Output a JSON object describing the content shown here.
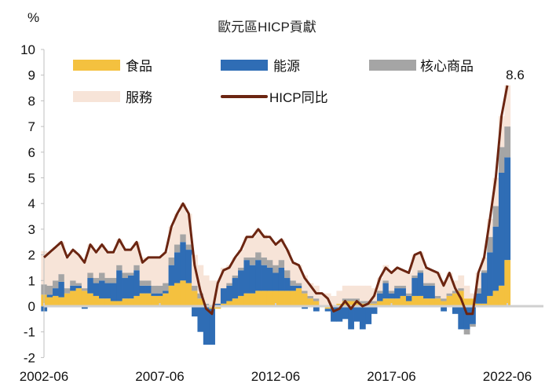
{
  "chart_data": {
    "type": "bar",
    "title": "歐元區HICP貢獻",
    "ylabel": "%",
    "xlabel": "",
    "ylim": [
      -2,
      10
    ],
    "yticks": [
      "10",
      "9",
      "8",
      "7",
      "6",
      "5",
      "4",
      "3",
      "2",
      "1",
      "0",
      "-1",
      "-2"
    ],
    "xticks": [
      "2002-06",
      "2007-06",
      "2012-06",
      "2017-06",
      "2022-06"
    ],
    "annotation": "8.6",
    "legend_position": "top",
    "legend": [
      "食品",
      "能源",
      "核心商品",
      "服務",
      "HICP同比"
    ],
    "colors": {
      "food": "#f4c13f",
      "energy": "#2f6db5",
      "core": "#a5a5a5",
      "services": "#f7e4d8",
      "line": "#6b2511"
    },
    "x": [
      "2002-06",
      "2002-09",
      "2002-12",
      "2003-03",
      "2003-06",
      "2003-09",
      "2003-12",
      "2004-03",
      "2004-06",
      "2004-09",
      "2004-12",
      "2005-03",
      "2005-06",
      "2005-09",
      "2005-12",
      "2006-03",
      "2006-06",
      "2006-09",
      "2006-12",
      "2007-03",
      "2007-06",
      "2007-09",
      "2007-12",
      "2008-03",
      "2008-06",
      "2008-09",
      "2008-12",
      "2009-03",
      "2009-06",
      "2009-09",
      "2009-12",
      "2010-03",
      "2010-06",
      "2010-09",
      "2010-12",
      "2011-03",
      "2011-06",
      "2011-09",
      "2011-12",
      "2012-03",
      "2012-06",
      "2012-09",
      "2012-12",
      "2013-03",
      "2013-06",
      "2013-09",
      "2013-12",
      "2014-03",
      "2014-06",
      "2014-09",
      "2014-12",
      "2015-03",
      "2015-06",
      "2015-09",
      "2015-12",
      "2016-03",
      "2016-06",
      "2016-09",
      "2016-12",
      "2017-03",
      "2017-06",
      "2017-09",
      "2017-12",
      "2018-03",
      "2018-06",
      "2018-09",
      "2018-12",
      "2019-03",
      "2019-06",
      "2019-09",
      "2019-12",
      "2020-03",
      "2020-06",
      "2020-09",
      "2020-12",
      "2021-03",
      "2021-06",
      "2021-09",
      "2021-12",
      "2022-03",
      "2022-06"
    ],
    "series": [
      {
        "name": "食品",
        "key": "food",
        "values": [
          0.45,
          0.35,
          0.4,
          0.35,
          0.5,
          0.6,
          0.7,
          0.6,
          0.5,
          0.4,
          0.3,
          0.3,
          0.2,
          0.2,
          0.3,
          0.3,
          0.4,
          0.5,
          0.5,
          0.4,
          0.4,
          0.5,
          0.8,
          0.9,
          1.0,
          0.9,
          0.6,
          0.3,
          0.0,
          -0.1,
          -0.1,
          0.1,
          0.2,
          0.3,
          0.4,
          0.5,
          0.5,
          0.6,
          0.6,
          0.6,
          0.6,
          0.6,
          0.6,
          0.6,
          0.7,
          0.5,
          0.3,
          0.2,
          0.0,
          -0.1,
          0.0,
          0.1,
          0.2,
          0.2,
          0.2,
          0.1,
          0.1,
          0.1,
          0.2,
          0.3,
          0.3,
          0.3,
          0.4,
          0.2,
          0.4,
          0.4,
          0.3,
          0.3,
          0.3,
          0.2,
          0.4,
          0.5,
          0.6,
          0.3,
          0.3,
          0.1,
          0.1,
          0.4,
          0.6,
          0.8,
          1.8
        ]
      },
      {
        "name": "能源",
        "key": "energy",
        "values": [
          -0.2,
          0.1,
          0.3,
          0.6,
          0.0,
          0.2,
          0.1,
          -0.1,
          0.6,
          0.5,
          0.7,
          0.6,
          0.7,
          1.2,
          0.8,
          0.9,
          1.0,
          0.3,
          0.3,
          0.1,
          0.1,
          0.1,
          0.8,
          1.2,
          1.5,
          1.3,
          -0.4,
          -1.0,
          -1.5,
          -1.4,
          0.1,
          0.6,
          0.6,
          0.8,
          1.0,
          1.3,
          1.1,
          1.2,
          1.0,
          0.9,
          0.7,
          0.9,
          0.5,
          0.2,
          0.1,
          -0.1,
          0.0,
          -0.2,
          0.0,
          -0.1,
          -0.6,
          -0.6,
          -0.5,
          -0.9,
          -0.6,
          -0.9,
          -0.7,
          -0.3,
          0.3,
          0.6,
          0.2,
          0.4,
          0.3,
          0.2,
          0.7,
          0.9,
          0.5,
          0.5,
          0.0,
          -0.2,
          0.0,
          -0.3,
          -0.9,
          -0.9,
          -0.7,
          0.4,
          1.2,
          1.7,
          2.5,
          4.4,
          4.0
        ]
      },
      {
        "name": "核心商品",
        "key": "core",
        "values": [
          0.4,
          0.35,
          0.3,
          0.3,
          0.2,
          0.2,
          0.1,
          0.1,
          0.2,
          0.2,
          0.3,
          0.2,
          0.2,
          0.2,
          0.2,
          0.1,
          0.2,
          0.2,
          0.2,
          0.3,
          0.3,
          0.3,
          0.3,
          0.3,
          0.3,
          0.2,
          0.2,
          0.2,
          0.1,
          0.0,
          0.0,
          0.0,
          0.1,
          0.1,
          0.1,
          0.1,
          0.3,
          0.3,
          0.3,
          0.3,
          0.3,
          0.3,
          0.3,
          0.2,
          0.1,
          0.1,
          0.1,
          0.1,
          0.0,
          0.0,
          0.0,
          0.0,
          0.1,
          0.1,
          0.1,
          0.1,
          0.1,
          0.1,
          0.1,
          0.1,
          0.1,
          0.1,
          0.1,
          0.1,
          0.1,
          0.1,
          0.1,
          0.1,
          0.1,
          0.1,
          0.1,
          0.1,
          0.1,
          -0.2,
          -0.1,
          0.2,
          0.1,
          0.6,
          0.8,
          1.0,
          1.2
        ]
      },
      {
        "name": "服務",
        "key": "services",
        "values": [
          1.3,
          1.3,
          1.3,
          1.25,
          1.2,
          1.2,
          1.1,
          1.1,
          1.1,
          1.0,
          1.1,
          1.0,
          1.0,
          1.0,
          0.9,
          0.9,
          0.9,
          0.9,
          0.9,
          1.1,
          1.1,
          1.2,
          1.2,
          1.2,
          1.2,
          1.2,
          1.2,
          1.1,
          1.1,
          1.0,
          0.9,
          0.8,
          0.7,
          0.7,
          0.7,
          0.8,
          0.8,
          0.9,
          0.9,
          0.8,
          0.8,
          0.8,
          0.8,
          0.7,
          0.7,
          0.6,
          0.5,
          0.5,
          0.5,
          0.5,
          0.4,
          0.5,
          0.5,
          0.5,
          0.5,
          0.6,
          0.6,
          0.5,
          0.5,
          0.6,
          0.7,
          0.7,
          0.6,
          0.8,
          0.8,
          0.7,
          0.6,
          0.5,
          0.9,
          0.7,
          0.8,
          0.4,
          0.5,
          0.5,
          0.2,
          0.6,
          0.5,
          0.7,
          1.1,
          1.2,
          1.6
        ]
      },
      {
        "name": "HICP同比",
        "key": "hicp",
        "type": "line",
        "values": [
          1.9,
          2.1,
          2.3,
          2.5,
          1.9,
          2.2,
          2.0,
          1.7,
          2.4,
          2.1,
          2.4,
          2.1,
          2.1,
          2.6,
          2.2,
          2.2,
          2.5,
          1.7,
          1.9,
          1.9,
          1.9,
          2.1,
          3.1,
          3.6,
          4.0,
          3.6,
          1.6,
          0.6,
          -0.1,
          -0.3,
          0.9,
          1.4,
          1.5,
          1.9,
          2.2,
          2.7,
          2.7,
          3.0,
          2.7,
          2.7,
          2.4,
          2.6,
          2.2,
          1.7,
          1.6,
          1.1,
          0.8,
          0.5,
          0.5,
          0.3,
          -0.2,
          -0.1,
          0.2,
          -0.1,
          0.2,
          0.0,
          0.1,
          0.4,
          1.1,
          1.5,
          1.3,
          1.5,
          1.4,
          1.3,
          2.0,
          2.1,
          1.5,
          1.4,
          1.3,
          0.8,
          1.3,
          0.7,
          0.3,
          -0.3,
          -0.3,
          1.3,
          1.9,
          3.4,
          5.0,
          7.4,
          8.6
        ]
      }
    ]
  }
}
